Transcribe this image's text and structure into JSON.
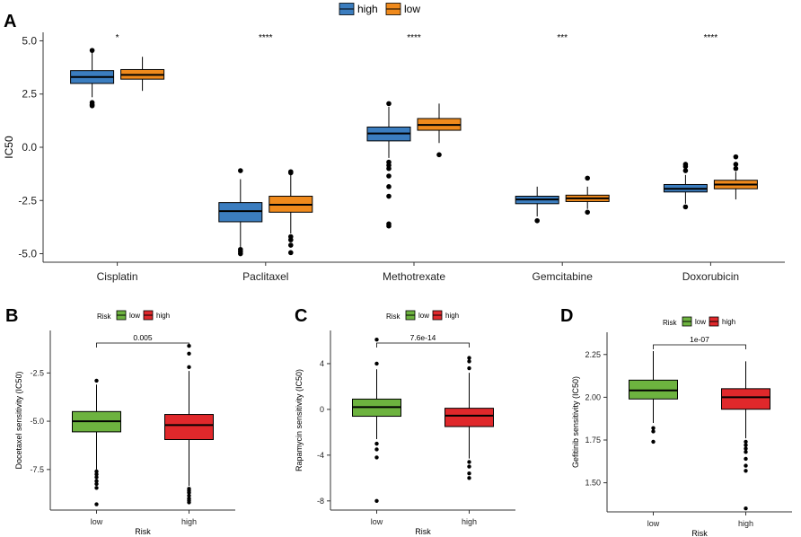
{
  "chart_data": [
    {
      "panel": "A",
      "type": "box",
      "ylabel": "IC50",
      "xlabel": "",
      "ylim": [
        -5.4,
        5.4
      ],
      "yticks": [
        -5.0,
        -2.5,
        0.0,
        2.5,
        5.0
      ],
      "ytick_labels": [
        "-5.0",
        "-2.5",
        "0.0",
        "2.5",
        "5.0"
      ],
      "categories": [
        "Cisplatin",
        "Paclitaxel",
        "Methotrexate",
        "Gemcitabine",
        "Doxorubicin"
      ],
      "significance": [
        "*",
        "****",
        "****",
        "***",
        "****"
      ],
      "legend": [
        {
          "label": "high",
          "color": "#3b7dbf"
        },
        {
          "label": "low",
          "color": "#f08a1c"
        }
      ],
      "boxes": [
        {
          "category": "Cisplatin",
          "group": "high",
          "min": 2.35,
          "q1": 3.0,
          "median": 3.3,
          "q3": 3.6,
          "max": 4.5,
          "outliers": [
            4.55,
            2.1,
            2.0,
            1.95
          ]
        },
        {
          "category": "Cisplatin",
          "group": "low",
          "min": 2.65,
          "q1": 3.2,
          "median": 3.4,
          "q3": 3.65,
          "max": 4.25,
          "outliers": []
        },
        {
          "category": "Paclitaxel",
          "group": "high",
          "min": -4.7,
          "q1": -3.5,
          "median": -3.0,
          "q3": -2.6,
          "max": -1.5,
          "outliers": [
            -1.1,
            -4.8,
            -4.9,
            -5.0
          ]
        },
        {
          "category": "Paclitaxel",
          "group": "low",
          "min": -4.05,
          "q1": -3.05,
          "median": -2.7,
          "q3": -2.3,
          "max": -1.3,
          "outliers": [
            -1.15,
            -1.2,
            -4.2,
            -4.35,
            -4.6,
            -4.95
          ]
        },
        {
          "category": "Methotrexate",
          "group": "high",
          "min": -0.5,
          "q1": 0.3,
          "median": 0.65,
          "q3": 0.95,
          "max": 1.9,
          "outliers": [
            2.05,
            -0.7,
            -0.85,
            -1.0,
            -1.35,
            -1.85,
            -2.3,
            -3.6,
            -3.7
          ]
        },
        {
          "category": "Methotrexate",
          "group": "low",
          "min": 0.2,
          "q1": 0.8,
          "median": 1.05,
          "q3": 1.35,
          "max": 2.05,
          "outliers": [
            -0.35
          ]
        },
        {
          "category": "Gemcitabine",
          "group": "high",
          "min": -3.25,
          "q1": -2.65,
          "median": -2.45,
          "q3": -2.3,
          "max": -1.85,
          "outliers": [
            -3.45
          ]
        },
        {
          "category": "Gemcitabine",
          "group": "low",
          "min": -2.9,
          "q1": -2.55,
          "median": -2.4,
          "q3": -2.25,
          "max": -1.85,
          "outliers": [
            -1.45,
            -3.05
          ]
        },
        {
          "category": "Doxorubicin",
          "group": "high",
          "min": -2.65,
          "q1": -2.1,
          "median": -1.95,
          "q3": -1.75,
          "max": -1.3,
          "outliers": [
            -0.8,
            -0.9,
            -1.1,
            -2.8
          ]
        },
        {
          "category": "Doxorubicin",
          "group": "low",
          "min": -2.45,
          "q1": -1.95,
          "median": -1.75,
          "q3": -1.55,
          "max": -1.15,
          "outliers": [
            -0.45,
            -0.8,
            -1.0
          ]
        }
      ]
    },
    {
      "panel": "B",
      "type": "box",
      "ylabel": "Docetaxel sensitivity (IC50)",
      "xlabel": "Risk",
      "legend_title": "Risk",
      "ylim": [
        -9.6,
        -0.3
      ],
      "yticks": [
        -7.5,
        -5.0,
        -2.5
      ],
      "ytick_labels": [
        "-7.5",
        "-5.0",
        "-2.5"
      ],
      "categories": [
        "low",
        "high"
      ],
      "pvalue": "0.005",
      "legend": [
        {
          "label": "low",
          "color": "#6db33f"
        },
        {
          "label": "high",
          "color": "#e0282b"
        }
      ],
      "boxes": [
        {
          "category": "low",
          "min": -7.5,
          "q1": -5.55,
          "median": -5.0,
          "q3": -4.5,
          "max": -3.1,
          "outliers": [
            -2.9,
            -7.6,
            -7.75,
            -7.9,
            -8.1,
            -8.25,
            -8.45,
            -9.3
          ]
        },
        {
          "category": "high",
          "min": -8.35,
          "q1": -5.95,
          "median": -5.2,
          "q3": -4.65,
          "max": -2.4,
          "outliers": [
            -1.1,
            -1.5,
            -2.2,
            -8.5,
            -8.6,
            -8.7,
            -8.85,
            -9.0,
            -9.1,
            -9.2
          ]
        }
      ]
    },
    {
      "panel": "C",
      "type": "box",
      "ylabel": "Rapamycin sensitivity (IC50)",
      "xlabel": "Risk",
      "legend_title": "Risk",
      "ylim": [
        -8.8,
        6.9
      ],
      "yticks": [
        -8,
        -4,
        0,
        4
      ],
      "ytick_labels": [
        "-8",
        "-4",
        "0",
        "4"
      ],
      "categories": [
        "low",
        "high"
      ],
      "pvalue": "7.6e-14",
      "legend": [
        {
          "label": "low",
          "color": "#6db33f"
        },
        {
          "label": "high",
          "color": "#e0282b"
        }
      ],
      "boxes": [
        {
          "category": "low",
          "min": -2.6,
          "q1": -0.6,
          "median": 0.2,
          "q3": 0.9,
          "max": 3.5,
          "outliers": [
            6.1,
            4.0,
            -3.0,
            -3.5,
            -4.2,
            -8.0
          ]
        },
        {
          "category": "high",
          "min": -4.3,
          "q1": -1.5,
          "median": -0.55,
          "q3": 0.1,
          "max": 3.2,
          "outliers": [
            4.5,
            4.2,
            3.6,
            -4.6,
            -5.0,
            -5.6,
            -6.0
          ]
        }
      ]
    },
    {
      "panel": "D",
      "type": "box",
      "ylabel": "Gefitinib sensitivity (IC50)",
      "xlabel": "Risk",
      "legend_title": "Risk",
      "ylim": [
        1.33,
        2.38
      ],
      "yticks": [
        1.5,
        1.75,
        2.0,
        2.25
      ],
      "ytick_labels": [
        "1.50",
        "1.75",
        "2.00",
        "2.25"
      ],
      "categories": [
        "low",
        "high"
      ],
      "pvalue": "1e-07",
      "legend": [
        {
          "label": "low",
          "color": "#6db33f"
        },
        {
          "label": "high",
          "color": "#e0282b"
        }
      ],
      "boxes": [
        {
          "category": "low",
          "min": 1.85,
          "q1": 1.99,
          "median": 2.04,
          "q3": 2.1,
          "max": 2.27,
          "outliers": [
            1.82,
            1.8,
            1.74
          ]
        },
        {
          "category": "high",
          "min": 1.76,
          "q1": 1.93,
          "median": 2.0,
          "q3": 2.05,
          "max": 2.21,
          "outliers": [
            1.74,
            1.72,
            1.7,
            1.68,
            1.64,
            1.6,
            1.57,
            1.35
          ]
        }
      ]
    }
  ]
}
